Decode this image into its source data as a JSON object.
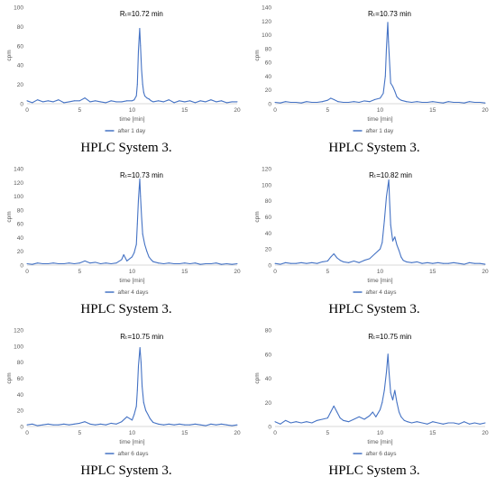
{
  "chart_data": [
    {
      "type": "line",
      "annotation": "Rₜ=10.72 min",
      "ylabel": "cpm",
      "xlabel": "time [min]",
      "legend": "after 1 day",
      "caption": "HPLC System 3.",
      "xlim": [
        0,
        20
      ],
      "ylim": [
        0,
        100
      ],
      "yticks": [
        0,
        20,
        40,
        60,
        80,
        100
      ],
      "xticks": [
        0,
        5,
        10,
        15,
        20
      ],
      "series": [
        {
          "color": "#4472C4",
          "x": [
            0,
            0.5,
            1,
            1.5,
            2,
            2.5,
            3,
            3.5,
            4,
            4.5,
            5,
            5.5,
            6,
            6.5,
            7,
            7.5,
            8,
            8.5,
            9,
            9.5,
            10,
            10.2,
            10.4,
            10.5,
            10.6,
            10.72,
            10.8,
            10.9,
            11,
            11.1,
            11.2,
            11.4,
            11.6,
            11.8,
            12,
            12.5,
            13,
            13.5,
            14,
            14.5,
            15,
            15.5,
            16,
            16.5,
            17,
            17.5,
            18,
            18.5,
            19,
            19.5,
            20
          ],
          "y": [
            3,
            1,
            4,
            2,
            3,
            2,
            4,
            1,
            2,
            3,
            3,
            6,
            2,
            3,
            2,
            1,
            3,
            2,
            2,
            3,
            3,
            4,
            8,
            20,
            55,
            78,
            60,
            35,
            20,
            12,
            8,
            6,
            5,
            3,
            2,
            3,
            2,
            4,
            1,
            3,
            2,
            3,
            1,
            3,
            2,
            4,
            2,
            3,
            1,
            2,
            2
          ]
        }
      ]
    },
    {
      "type": "line",
      "annotation": "Rₜ=10.73 min",
      "ylabel": "cpm",
      "xlabel": "time [min]",
      "legend": "after 1 day",
      "caption": "HPLC System 3.",
      "xlim": [
        0,
        20
      ],
      "ylim": [
        0,
        140
      ],
      "yticks": [
        0,
        20,
        40,
        60,
        80,
        100,
        120,
        140
      ],
      "xticks": [
        0,
        5,
        10,
        15,
        20
      ],
      "series": [
        {
          "color": "#4472C4",
          "x": [
            0,
            0.5,
            1,
            1.5,
            2,
            2.5,
            3,
            3.5,
            4,
            4.5,
            5,
            5.3,
            5.6,
            6,
            6.5,
            7,
            7.5,
            8,
            8.5,
            9,
            9.5,
            10,
            10.3,
            10.5,
            10.6,
            10.73,
            10.8,
            10.9,
            11,
            11.2,
            11.4,
            11.6,
            11.8,
            12,
            12.5,
            13,
            13.5,
            14,
            14.5,
            15,
            15.5,
            16,
            16.5,
            17,
            17.5,
            18,
            18.5,
            19,
            19.5,
            20
          ],
          "y": [
            2,
            1,
            3,
            2,
            2,
            1,
            3,
            2,
            2,
            3,
            5,
            8,
            6,
            3,
            2,
            2,
            3,
            2,
            4,
            3,
            6,
            8,
            15,
            40,
            80,
            118,
            90,
            60,
            30,
            25,
            18,
            10,
            7,
            5,
            3,
            2,
            3,
            2,
            2,
            3,
            2,
            1,
            3,
            2,
            2,
            1,
            3,
            2,
            2,
            1
          ]
        }
      ]
    },
    {
      "type": "line",
      "annotation": "Rₜ=10.73 min",
      "ylabel": "cpm",
      "xlabel": "time [min]",
      "legend": "after 4 days",
      "caption": "HPLC System 3.",
      "xlim": [
        0,
        20
      ],
      "ylim": [
        0,
        140
      ],
      "yticks": [
        0,
        20,
        40,
        60,
        80,
        100,
        120,
        140
      ],
      "xticks": [
        0,
        5,
        10,
        15,
        20
      ],
      "series": [
        {
          "color": "#4472C4",
          "x": [
            0,
            0.5,
            1,
            1.5,
            2,
            2.5,
            3,
            3.5,
            4,
            4.5,
            5,
            5.5,
            6,
            6.5,
            7,
            7.5,
            8,
            8.5,
            9,
            9.2,
            9.5,
            10,
            10.2,
            10.4,
            10.5,
            10.6,
            10.73,
            10.8,
            10.9,
            11,
            11.2,
            11.4,
            11.6,
            11.8,
            12,
            12.5,
            13,
            13.5,
            14,
            14.5,
            15,
            15.5,
            16,
            16.5,
            17,
            17.5,
            18,
            18.5,
            19,
            19.5,
            20
          ],
          "y": [
            2,
            1,
            3,
            2,
            2,
            3,
            2,
            2,
            3,
            2,
            3,
            6,
            3,
            4,
            2,
            3,
            2,
            3,
            8,
            15,
            6,
            12,
            18,
            30,
            60,
            95,
            125,
            100,
            70,
            45,
            30,
            20,
            12,
            8,
            5,
            3,
            2,
            3,
            2,
            2,
            3,
            2,
            3,
            1,
            2,
            2,
            3,
            1,
            2,
            1,
            2
          ]
        }
      ]
    },
    {
      "type": "line",
      "annotation": "Rₜ=10.82 min",
      "ylabel": "cpm",
      "xlabel": "time [min]",
      "legend": "after 4 days",
      "caption": "HPLC System 3.",
      "xlim": [
        0,
        20
      ],
      "ylim": [
        0,
        120
      ],
      "yticks": [
        0,
        20,
        40,
        60,
        80,
        100,
        120
      ],
      "xticks": [
        0,
        5,
        10,
        15,
        20
      ],
      "series": [
        {
          "color": "#4472C4",
          "x": [
            0,
            0.5,
            1,
            1.5,
            2,
            2.5,
            3,
            3.5,
            4,
            4.5,
            5,
            5.3,
            5.6,
            5.9,
            6.2,
            6.5,
            7,
            7.5,
            8,
            8.5,
            9,
            9.5,
            10,
            10.2,
            10.4,
            10.6,
            10.82,
            10.9,
            11,
            11.2,
            11.4,
            11.6,
            11.8,
            12,
            12.2,
            12.5,
            13,
            13.5,
            14,
            14.5,
            15,
            15.5,
            16,
            16.5,
            17,
            17.5,
            18,
            18.5,
            19,
            19.5,
            20
          ],
          "y": [
            2,
            1,
            3,
            2,
            2,
            3,
            2,
            3,
            2,
            4,
            5,
            10,
            14,
            9,
            6,
            4,
            3,
            5,
            3,
            6,
            8,
            14,
            20,
            28,
            55,
            85,
            106,
            80,
            50,
            30,
            35,
            25,
            18,
            10,
            6,
            4,
            3,
            4,
            2,
            3,
            2,
            3,
            2,
            2,
            3,
            2,
            1,
            3,
            2,
            2,
            1
          ]
        }
      ]
    },
    {
      "type": "line",
      "annotation": "Rₜ=10.75 min",
      "ylabel": "cpm",
      "xlabel": "time [min]",
      "legend": "after 6 days",
      "caption": "HPLC System 3.",
      "xlim": [
        0,
        20
      ],
      "ylim": [
        0,
        120
      ],
      "yticks": [
        0,
        20,
        40,
        60,
        80,
        100,
        120
      ],
      "xticks": [
        0,
        5,
        10,
        15,
        20
      ],
      "series": [
        {
          "color": "#4472C4",
          "x": [
            0,
            0.5,
            1,
            1.5,
            2,
            2.5,
            3,
            3.5,
            4,
            4.5,
            5,
            5.5,
            6,
            6.5,
            7,
            7.5,
            8,
            8.5,
            9,
            9.5,
            10,
            10.2,
            10.4,
            10.5,
            10.6,
            10.75,
            10.85,
            10.95,
            11.1,
            11.3,
            11.5,
            11.7,
            12,
            12.5,
            13,
            13.5,
            14,
            14.5,
            15,
            15.5,
            16,
            16.5,
            17,
            17.5,
            18,
            18.5,
            19,
            19.5,
            20
          ],
          "y": [
            2,
            3,
            1,
            2,
            3,
            2,
            2,
            3,
            2,
            3,
            4,
            6,
            3,
            2,
            3,
            2,
            4,
            3,
            6,
            12,
            8,
            15,
            25,
            45,
            75,
            98,
            80,
            50,
            30,
            20,
            15,
            10,
            5,
            3,
            2,
            3,
            2,
            3,
            2,
            2,
            3,
            2,
            1,
            3,
            2,
            3,
            2,
            1,
            2
          ]
        }
      ]
    },
    {
      "type": "line",
      "annotation": "Rₜ=10.75 min",
      "ylabel": "cpm",
      "xlabel": "time [min]",
      "legend": "after 6 days",
      "caption": "HPLC System 3.",
      "xlim": [
        0,
        20
      ],
      "ylim": [
        0,
        80
      ],
      "yticks": [
        0,
        20,
        40,
        60,
        80
      ],
      "xticks": [
        0,
        5,
        10,
        15,
        20
      ],
      "series": [
        {
          "color": "#4472C4",
          "x": [
            0,
            0.5,
            1,
            1.5,
            2,
            2.5,
            3,
            3.5,
            4,
            4.5,
            5,
            5.3,
            5.6,
            5.9,
            6.2,
            6.5,
            7,
            7.5,
            8,
            8.5,
            9,
            9.3,
            9.6,
            10,
            10.2,
            10.4,
            10.6,
            10.75,
            10.85,
            11,
            11.2,
            11.4,
            11.6,
            11.8,
            12,
            12.3,
            12.6,
            13,
            13.5,
            14,
            14.5,
            15,
            15.5,
            16,
            16.5,
            17,
            17.5,
            18,
            18.5,
            19,
            19.5,
            20
          ],
          "y": [
            4,
            2,
            5,
            3,
            4,
            3,
            4,
            3,
            5,
            6,
            7,
            12,
            17,
            12,
            7,
            5,
            4,
            6,
            8,
            6,
            9,
            12,
            8,
            14,
            20,
            30,
            45,
            60,
            45,
            28,
            22,
            30,
            20,
            12,
            8,
            5,
            4,
            3,
            4,
            3,
            2,
            4,
            3,
            2,
            3,
            3,
            2,
            4,
            2,
            3,
            2,
            3
          ]
        }
      ]
    }
  ]
}
